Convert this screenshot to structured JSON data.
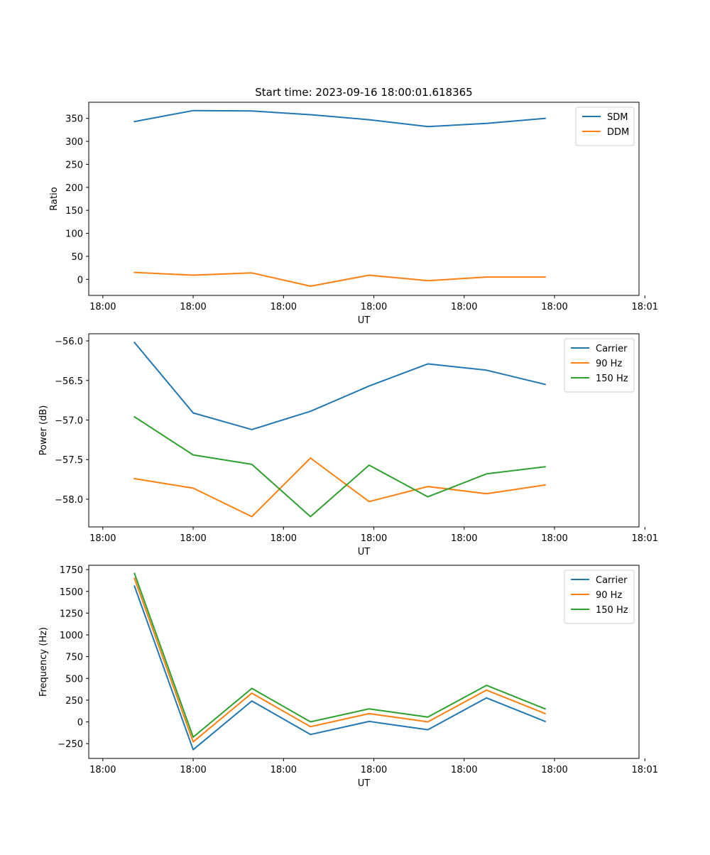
{
  "figure_title": "Start time: 2023-09-16 18:00:01.618365",
  "colors": {
    "blue": "#1f77b4",
    "orange": "#ff7f0e",
    "green": "#2ca02c"
  },
  "chart_data": [
    {
      "type": "line",
      "title": "Start time: 2023-09-16 18:00:01.618365",
      "xlabel": "UT",
      "ylabel": "Ratio",
      "x": [
        1,
        2,
        3,
        4,
        5,
        6,
        7,
        8
      ],
      "xlim": [
        0.22,
        9.6
      ],
      "ylim": [
        -35,
        385
      ],
      "xticks": [
        0.46,
        2.0,
        3.54,
        5.08,
        6.62,
        8.16,
        9.7
      ],
      "xtick_labels": [
        "18:00",
        "18:00",
        "18:00",
        "18:00",
        "18:00",
        "18:00",
        "18:01"
      ],
      "yticks": [
        0,
        50,
        100,
        150,
        200,
        250,
        300,
        350
      ],
      "ytick_labels": [
        "0",
        "50",
        "100",
        "150",
        "200",
        "250",
        "300",
        "350"
      ],
      "legend": "top-right",
      "series": [
        {
          "name": "SDM",
          "color": "#1f77b4",
          "values": [
            343,
            367,
            366,
            358,
            347,
            332,
            339,
            350
          ]
        },
        {
          "name": "DDM",
          "color": "#ff7f0e",
          "values": [
            15,
            9,
            14,
            -15,
            9,
            -3,
            5,
            5
          ]
        }
      ]
    },
    {
      "type": "line",
      "title": "",
      "xlabel": "UT",
      "ylabel": "Power (dB)",
      "x": [
        1,
        2,
        3,
        4,
        5,
        6,
        7,
        8
      ],
      "xlim": [
        0.22,
        9.6
      ],
      "ylim": [
        -58.35,
        -55.91
      ],
      "xticks": [
        0.46,
        2.0,
        3.54,
        5.08,
        6.62,
        8.16,
        9.7
      ],
      "xtick_labels": [
        "18:00",
        "18:00",
        "18:00",
        "18:00",
        "18:00",
        "18:00",
        "18:01"
      ],
      "yticks": [
        -58.0,
        -57.5,
        -57.0,
        -56.5,
        -56.0
      ],
      "ytick_labels": [
        "−58.0",
        "−57.5",
        "−57.0",
        "−56.5",
        "−56.0"
      ],
      "legend": "top-right",
      "series": [
        {
          "name": "Carrier",
          "color": "#1f77b4",
          "values": [
            -56.02,
            -56.91,
            -57.12,
            -56.89,
            -56.57,
            -56.29,
            -56.37,
            -56.55
          ]
        },
        {
          "name": "90 Hz",
          "color": "#ff7f0e",
          "values": [
            -57.74,
            -57.86,
            -58.22,
            -57.48,
            -58.03,
            -57.84,
            -57.93,
            -57.82
          ]
        },
        {
          "name": "150 Hz",
          "color": "#2ca02c",
          "values": [
            -56.96,
            -57.44,
            -57.56,
            -58.22,
            -57.57,
            -57.97,
            -57.68,
            -57.59
          ]
        }
      ]
    },
    {
      "type": "line",
      "title": "",
      "xlabel": "UT",
      "ylabel": "Frequency (Hz)",
      "x": [
        1,
        2,
        3,
        4,
        5,
        6,
        7,
        8
      ],
      "xlim": [
        0.22,
        9.6
      ],
      "ylim": [
        -420,
        1800
      ],
      "xticks": [
        0.46,
        2.0,
        3.54,
        5.08,
        6.62,
        8.16,
        9.7
      ],
      "xtick_labels": [
        "18:00",
        "18:00",
        "18:00",
        "18:00",
        "18:00",
        "18:00",
        "18:01"
      ],
      "yticks": [
        -250,
        0,
        250,
        500,
        750,
        1000,
        1250,
        1500,
        1750
      ],
      "ytick_labels": [
        "−250",
        "0",
        "250",
        "500",
        "750",
        "1000",
        "1250",
        "1500",
        "1750"
      ],
      "legend": "top-right",
      "series": [
        {
          "name": "Carrier",
          "color": "#1f77b4",
          "values": [
            1560,
            -320,
            240,
            -145,
            5,
            -90,
            275,
            5
          ]
        },
        {
          "name": "90 Hz",
          "color": "#ff7f0e",
          "values": [
            1650,
            -230,
            330,
            -55,
            95,
            0,
            365,
            95
          ]
        },
        {
          "name": "150 Hz",
          "color": "#2ca02c",
          "values": [
            1705,
            -175,
            385,
            0,
            150,
            55,
            420,
            150
          ]
        }
      ]
    }
  ]
}
